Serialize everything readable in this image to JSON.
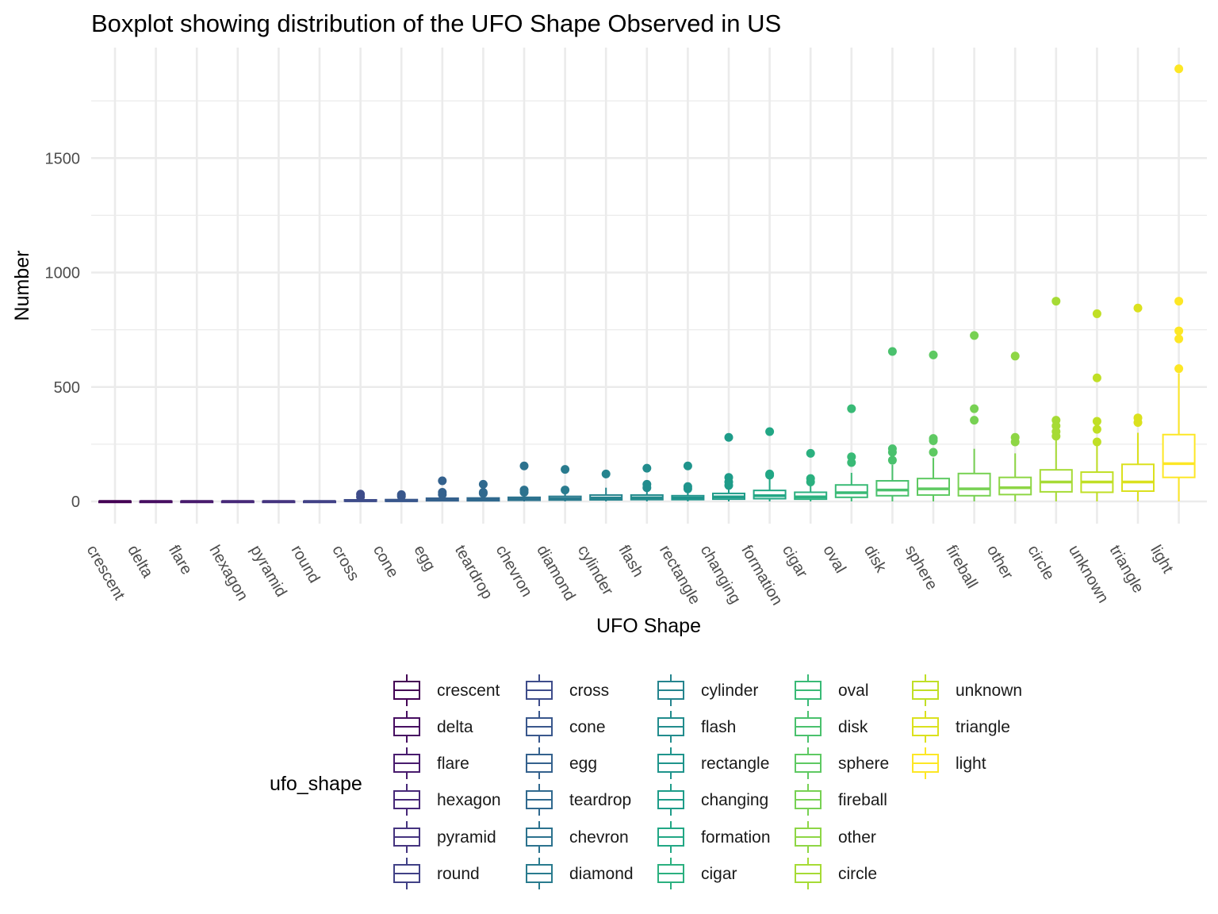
{
  "chart_data": {
    "type": "boxplot",
    "title": "Boxplot showing distribution of the UFO Shape Observed in US",
    "xlabel": "UFO Shape",
    "ylabel": "Number",
    "ylim": [
      -100,
      1965
    ],
    "y_ticks": [
      0,
      500,
      1000,
      1500
    ],
    "grid": true,
    "legend_title": "ufo_shape",
    "legend_position": "bottom",
    "categories": [
      "crescent",
      "delta",
      "flare",
      "hexagon",
      "pyramid",
      "round",
      "cross",
      "cone",
      "egg",
      "teardrop",
      "chevron",
      "diamond",
      "cylinder",
      "flash",
      "rectangle",
      "changing",
      "formation",
      "cigar",
      "oval",
      "disk",
      "sphere",
      "fireball",
      "other",
      "circle",
      "unknown",
      "triangle",
      "light"
    ],
    "colors": [
      "#440154",
      "#470E61",
      "#481B6D",
      "#472878",
      "#45347F",
      "#414186",
      "#3E4C8A",
      "#39578C",
      "#34618D",
      "#30698E",
      "#2C728E",
      "#297B8E",
      "#25848E",
      "#228C8D",
      "#1F948C",
      "#1E9C89",
      "#22A785",
      "#2BB07F",
      "#39BA76",
      "#4AC16D",
      "#5EC962",
      "#77D153",
      "#8ED645",
      "#A6DB35",
      "#C0DF25",
      "#DBE11E",
      "#FDE725"
    ],
    "boxes": [
      {
        "category": "crescent",
        "min": 0,
        "q1": 0,
        "median": 0,
        "q3": 1,
        "max": 1,
        "outliers": []
      },
      {
        "category": "delta",
        "min": 0,
        "q1": 0,
        "median": 0,
        "q3": 1,
        "max": 2,
        "outliers": []
      },
      {
        "category": "flare",
        "min": 0,
        "q1": 0,
        "median": 0,
        "q3": 1,
        "max": 2,
        "outliers": []
      },
      {
        "category": "hexagon",
        "min": 0,
        "q1": 0,
        "median": 0,
        "q3": 1,
        "max": 2,
        "outliers": []
      },
      {
        "category": "pyramid",
        "min": 0,
        "q1": 0,
        "median": 0,
        "q3": 1,
        "max": 2,
        "outliers": []
      },
      {
        "category": "round",
        "min": 0,
        "q1": 0,
        "median": 0,
        "q3": 1,
        "max": 2,
        "outliers": []
      },
      {
        "category": "cross",
        "min": 0,
        "q1": 1,
        "median": 3,
        "q3": 7,
        "max": 14,
        "outliers": [
          20,
          32
        ]
      },
      {
        "category": "cone",
        "min": 0,
        "q1": 1,
        "median": 3,
        "q3": 8,
        "max": 16,
        "outliers": [
          22,
          30
        ]
      },
      {
        "category": "egg",
        "min": 0,
        "q1": 3,
        "median": 7,
        "q3": 14,
        "max": 25,
        "outliers": [
          30,
          40,
          90
        ]
      },
      {
        "category": "teardrop",
        "min": 0,
        "q1": 3,
        "median": 8,
        "q3": 15,
        "max": 28,
        "outliers": [
          35,
          40,
          75
        ]
      },
      {
        "category": "chevron",
        "min": 0,
        "q1": 5,
        "median": 10,
        "q3": 18,
        "max": 35,
        "outliers": [
          40,
          50,
          155
        ]
      },
      {
        "category": "diamond",
        "min": 0,
        "q1": 6,
        "median": 12,
        "q3": 22,
        "max": 40,
        "outliers": [
          50,
          140
        ]
      },
      {
        "category": "cylinder",
        "min": 0,
        "q1": 7,
        "median": 15,
        "q3": 28,
        "max": 60,
        "outliers": [
          120
        ]
      },
      {
        "category": "flash",
        "min": 0,
        "q1": 8,
        "median": 16,
        "q3": 28,
        "max": 50,
        "outliers": [
          60,
          75,
          145
        ]
      },
      {
        "category": "rectangle",
        "min": 0,
        "q1": 8,
        "median": 15,
        "q3": 25,
        "max": 45,
        "outliers": [
          55,
          65,
          155
        ]
      },
      {
        "category": "changing",
        "min": 0,
        "q1": 10,
        "median": 20,
        "q3": 35,
        "max": 60,
        "outliers": [
          70,
          85,
          105,
          280
        ]
      },
      {
        "category": "formation",
        "min": 0,
        "q1": 12,
        "median": 25,
        "q3": 48,
        "max": 100,
        "outliers": [
          115,
          120,
          305
        ]
      },
      {
        "category": "cigar",
        "min": 0,
        "q1": 10,
        "median": 20,
        "q3": 40,
        "max": 75,
        "outliers": [
          85,
          100,
          210
        ]
      },
      {
        "category": "oval",
        "min": 0,
        "q1": 18,
        "median": 38,
        "q3": 72,
        "max": 125,
        "outliers": [
          170,
          195,
          405
        ]
      },
      {
        "category": "disk",
        "min": 0,
        "q1": 25,
        "median": 50,
        "q3": 90,
        "max": 160,
        "outliers": [
          180,
          215,
          230,
          655
        ]
      },
      {
        "category": "sphere",
        "min": 0,
        "q1": 28,
        "median": 55,
        "q3": 100,
        "max": 190,
        "outliers": [
          215,
          265,
          275,
          640
        ]
      },
      {
        "category": "fireball",
        "min": 0,
        "q1": 25,
        "median": 55,
        "q3": 122,
        "max": 230,
        "outliers": [
          355,
          405,
          725
        ]
      },
      {
        "category": "other",
        "min": 0,
        "q1": 30,
        "median": 60,
        "q3": 105,
        "max": 210,
        "outliers": [
          260,
          280,
          635
        ]
      },
      {
        "category": "circle",
        "min": 0,
        "q1": 42,
        "median": 85,
        "q3": 138,
        "max": 270,
        "outliers": [
          285,
          305,
          330,
          355,
          875
        ]
      },
      {
        "category": "unknown",
        "min": 0,
        "q1": 40,
        "median": 85,
        "q3": 128,
        "max": 250,
        "outliers": [
          260,
          315,
          350,
          540,
          820
        ]
      },
      {
        "category": "triangle",
        "min": 0,
        "q1": 45,
        "median": 85,
        "q3": 162,
        "max": 300,
        "outliers": [
          345,
          365,
          845
        ]
      },
      {
        "category": "light",
        "min": 0,
        "q1": 105,
        "median": 165,
        "q3": 292,
        "max": 560,
        "outliers": [
          580,
          710,
          745,
          875,
          1890
        ]
      }
    ]
  }
}
